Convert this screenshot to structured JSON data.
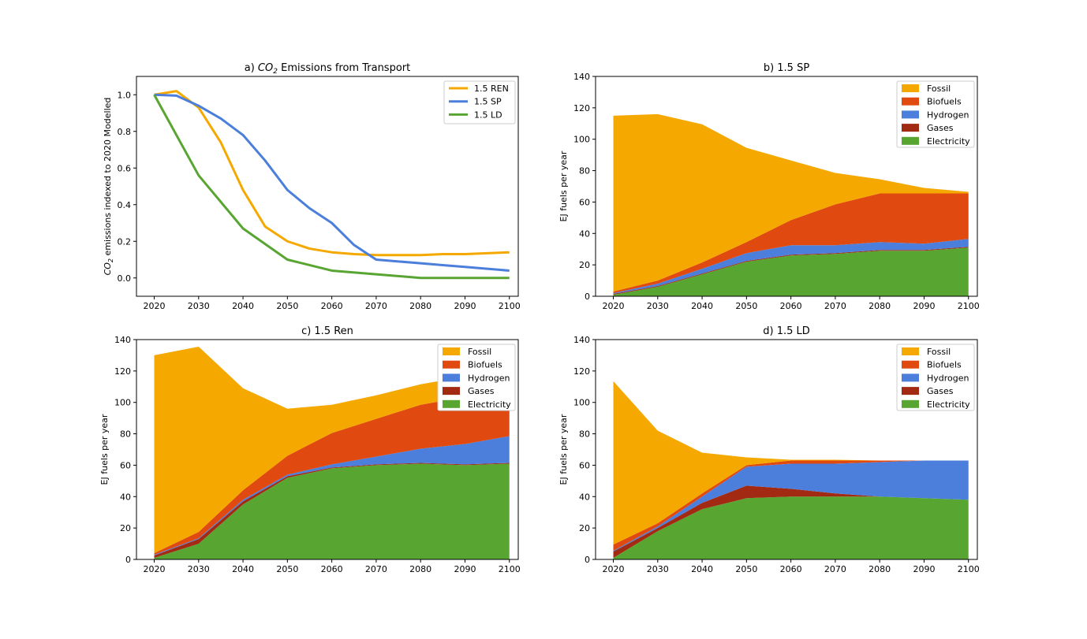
{
  "colors": {
    "Fossil": "#f5a800",
    "Biofuels": "#e04a10",
    "Hydrogen": "#4c7fdb",
    "Gases": "#a22a12",
    "Electricity": "#58a532",
    "REN": "#f5a800",
    "SP": "#4c7fdb",
    "LD": "#58a532"
  },
  "chart_data": [
    {
      "type": "line",
      "title_prefix": "a) ",
      "title_co": "CO",
      "title_sub": "2",
      "title_rest": " Emissions from Transport",
      "ylabel_co": "CO",
      "ylabel_sub": "2",
      "ylabel_rest": " emissions indexed to 2020 Modelled",
      "xlim": [
        2016,
        2102
      ],
      "ylim": [
        -0.1,
        1.1
      ],
      "xticks": [
        2020,
        2030,
        2040,
        2050,
        2060,
        2070,
        2080,
        2090,
        2100
      ],
      "yticks": [
        0.0,
        0.2,
        0.4,
        0.6,
        0.8,
        1.0
      ],
      "ytick_labels": [
        "0.0",
        "0.2",
        "0.4",
        "0.6",
        "0.8",
        "1.0"
      ],
      "legend_position": "top-right",
      "series": [
        {
          "name": "1.5 REN",
          "key": "REN",
          "x": [
            2020,
            2025,
            2030,
            2035,
            2040,
            2045,
            2050,
            2055,
            2060,
            2065,
            2070,
            2075,
            2080,
            2085,
            2090,
            2095,
            2100
          ],
          "y": [
            1.0,
            1.02,
            0.93,
            0.74,
            0.48,
            0.28,
            0.2,
            0.16,
            0.14,
            0.13,
            0.125,
            0.125,
            0.125,
            0.13,
            0.13,
            0.135,
            0.14
          ]
        },
        {
          "name": "1.5 SP",
          "key": "SP",
          "x": [
            2020,
            2025,
            2030,
            2035,
            2040,
            2045,
            2050,
            2055,
            2060,
            2065,
            2070,
            2075,
            2080,
            2085,
            2090,
            2095,
            2100
          ],
          "y": [
            1.0,
            0.995,
            0.94,
            0.87,
            0.78,
            0.64,
            0.48,
            0.38,
            0.3,
            0.18,
            0.1,
            0.09,
            0.08,
            0.07,
            0.06,
            0.05,
            0.04
          ]
        },
        {
          "name": "1.5 LD",
          "key": "LD",
          "x": [
            2020,
            2030,
            2040,
            2050,
            2060,
            2070,
            2080,
            2085,
            2090,
            2100
          ],
          "y": [
            1.0,
            0.56,
            0.27,
            0.1,
            0.04,
            0.02,
            0.0,
            0.0,
            0.0,
            0.0
          ]
        }
      ]
    },
    {
      "type": "area",
      "title": "b) 1.5 SP",
      "ylabel": "EJ fuels per year",
      "xlim": [
        2016,
        2102
      ],
      "ylim": [
        0,
        140
      ],
      "xticks": [
        2020,
        2030,
        2040,
        2050,
        2060,
        2070,
        2080,
        2090,
        2100
      ],
      "yticks": [
        0,
        20,
        40,
        60,
        80,
        100,
        120,
        140
      ],
      "legend_position": "top-right",
      "legend": [
        "Fossil",
        "Biofuels",
        "Hydrogen",
        "Gases",
        "Electricity"
      ],
      "x": [
        2020,
        2030,
        2040,
        2050,
        2060,
        2070,
        2080,
        2090,
        2100
      ],
      "stack_order": [
        "Electricity",
        "Gases",
        "Hydrogen",
        "Biofuels",
        "Fossil"
      ],
      "series": [
        {
          "name": "Electricity",
          "values": [
            1,
            6,
            14,
            22,
            26,
            27,
            29,
            29,
            31
          ]
        },
        {
          "name": "Gases",
          "values": [
            0.5,
            0.5,
            0.5,
            0.5,
            0.5,
            0.5,
            0.5,
            0.5,
            0.5
          ]
        },
        {
          "name": "Hydrogen",
          "values": [
            0.5,
            1.5,
            3,
            5,
            6,
            5,
            5,
            4,
            5
          ]
        },
        {
          "name": "Biofuels",
          "values": [
            1,
            2,
            4,
            7,
            16,
            26,
            31,
            32,
            29
          ]
        },
        {
          "name": "Fossil",
          "values": [
            112,
            106,
            88,
            60,
            38,
            20,
            9,
            3.5,
            1
          ]
        }
      ]
    },
    {
      "type": "area",
      "title": "c) 1.5 Ren",
      "ylabel": "EJ fuels per year",
      "xlim": [
        2016,
        2102
      ],
      "ylim": [
        0,
        140
      ],
      "xticks": [
        2020,
        2030,
        2040,
        2050,
        2060,
        2070,
        2080,
        2090,
        2100
      ],
      "yticks": [
        0,
        20,
        40,
        60,
        80,
        100,
        120,
        140
      ],
      "legend_position": "top-right",
      "legend": [
        "Fossil",
        "Biofuels",
        "Hydrogen",
        "Gases",
        "Electricity"
      ],
      "x": [
        2020,
        2030,
        2040,
        2050,
        2060,
        2070,
        2080,
        2090,
        2100
      ],
      "stack_order": [
        "Electricity",
        "Gases",
        "Hydrogen",
        "Biofuels",
        "Fossil"
      ],
      "series": [
        {
          "name": "Electricity",
          "values": [
            1,
            10,
            35,
            52,
            58,
            60,
            61,
            60,
            61
          ]
        },
        {
          "name": "Gases",
          "values": [
            1.5,
            3,
            2,
            1,
            0.5,
            0.5,
            0.5,
            0.5,
            0.5
          ]
        },
        {
          "name": "Hydrogen",
          "values": [
            0.5,
            0.5,
            1,
            1,
            2,
            5,
            9,
            13,
            17
          ]
        },
        {
          "name": "Biofuels",
          "values": [
            1,
            4,
            6,
            12,
            20,
            24,
            28,
            30,
            32
          ]
        },
        {
          "name": "Fossil",
          "values": [
            126,
            118,
            65,
            30,
            18,
            15,
            13,
            13,
            16
          ]
        }
      ]
    },
    {
      "type": "area",
      "title": "d) 1.5 LD",
      "ylabel": "EJ fuels per year",
      "xlim": [
        2016,
        2102
      ],
      "ylim": [
        0,
        140
      ],
      "xticks": [
        2020,
        2030,
        2040,
        2050,
        2060,
        2070,
        2080,
        2090,
        2100
      ],
      "yticks": [
        0,
        20,
        40,
        60,
        80,
        100,
        120,
        140
      ],
      "legend_position": "top-right",
      "legend": [
        "Fossil",
        "Biofuels",
        "Hydrogen",
        "Gases",
        "Electricity"
      ],
      "x": [
        2020,
        2030,
        2040,
        2050,
        2060,
        2070,
        2080,
        2090,
        2100
      ],
      "stack_order": [
        "Electricity",
        "Gases",
        "Hydrogen",
        "Biofuels",
        "Fossil"
      ],
      "series": [
        {
          "name": "Electricity",
          "values": [
            1,
            18,
            32,
            39,
            40,
            40,
            40,
            39,
            38
          ]
        },
        {
          "name": "Gases",
          "values": [
            4,
            2,
            4,
            8,
            5,
            2,
            0,
            0,
            0
          ]
        },
        {
          "name": "Hydrogen",
          "values": [
            0.5,
            1,
            4,
            12,
            16,
            19,
            22,
            24,
            25
          ]
        },
        {
          "name": "Biofuels",
          "values": [
            4,
            2,
            2,
            1,
            2,
            2,
            1,
            0,
            0
          ]
        },
        {
          "name": "Fossil",
          "values": [
            104,
            59,
            26,
            5,
            0.5,
            0.5,
            0,
            0,
            0
          ]
        }
      ]
    }
  ]
}
